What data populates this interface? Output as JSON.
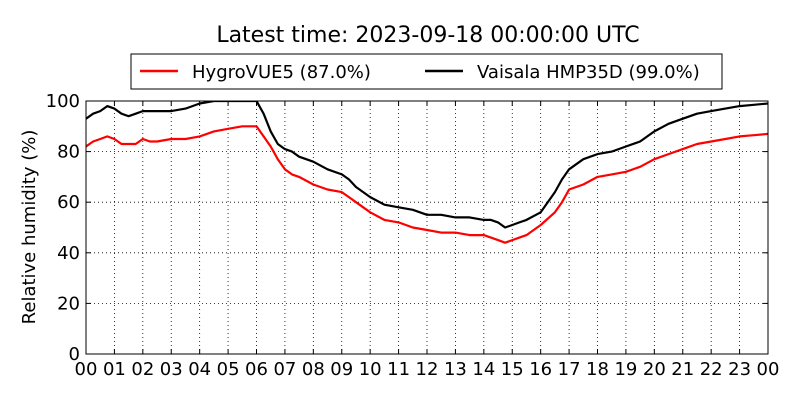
{
  "chart_data": {
    "type": "line",
    "title": "Latest time: 2023-09-18 00:00:00 UTC",
    "xlabel": "",
    "ylabel": "Relative humidity (%)",
    "xlim": [
      0,
      24
    ],
    "ylim": [
      0,
      100
    ],
    "x_ticks": [
      "00",
      "01",
      "02",
      "03",
      "04",
      "05",
      "06",
      "07",
      "08",
      "09",
      "10",
      "11",
      "12",
      "13",
      "14",
      "15",
      "16",
      "17",
      "18",
      "19",
      "20",
      "21",
      "22",
      "23",
      "00"
    ],
    "y_ticks": [
      0,
      20,
      40,
      60,
      80,
      100
    ],
    "grid": true,
    "legend_position": "top",
    "series": [
      {
        "name": "HygroVUE5 (87.0%)",
        "color": "#ff0000",
        "x": [
          0,
          0.25,
          0.5,
          0.75,
          1,
          1.25,
          1.5,
          1.75,
          2,
          2.25,
          2.5,
          3,
          3.5,
          4,
          4.5,
          5,
          5.5,
          6,
          6.25,
          6.5,
          6.75,
          7,
          7.25,
          7.5,
          8,
          8.5,
          9,
          9.25,
          9.5,
          10,
          10.5,
          11,
          11.5,
          12,
          12.5,
          13,
          13.5,
          14,
          14.25,
          14.5,
          14.75,
          15,
          15.25,
          15.5,
          16,
          16.5,
          16.75,
          17,
          17.5,
          18,
          18.5,
          19,
          19.5,
          20,
          20.5,
          21,
          21.5,
          22,
          22.5,
          23,
          23.5,
          24
        ],
        "values": [
          82,
          84,
          85,
          86,
          85,
          83,
          83,
          83,
          85,
          84,
          84,
          85,
          85,
          86,
          88,
          89,
          90,
          90,
          86,
          82,
          77,
          73,
          71,
          70,
          67,
          65,
          64,
          62,
          60,
          56,
          53,
          52,
          50,
          49,
          48,
          48,
          47,
          47,
          46,
          45,
          44,
          45,
          46,
          47,
          51,
          56,
          60,
          65,
          67,
          70,
          71,
          72,
          74,
          77,
          79,
          81,
          83,
          84,
          85,
          86,
          86.5,
          87
        ]
      },
      {
        "name": "Vaisala HMP35D (99.0%)",
        "color": "#000000",
        "x": [
          0,
          0.25,
          0.5,
          0.75,
          1,
          1.25,
          1.5,
          1.75,
          2,
          2.25,
          2.5,
          3,
          3.5,
          4,
          4.5,
          5,
          5.5,
          6,
          6.25,
          6.5,
          6.75,
          7,
          7.25,
          7.5,
          8,
          8.5,
          9,
          9.25,
          9.5,
          10,
          10.5,
          11,
          11.5,
          12,
          12.5,
          13,
          13.5,
          14,
          14.25,
          14.5,
          14.75,
          15,
          15.25,
          15.5,
          16,
          16.5,
          16.75,
          17,
          17.5,
          18,
          18.5,
          19,
          19.5,
          20,
          20.5,
          21,
          21.5,
          22,
          22.5,
          23,
          23.5,
          24
        ],
        "values": [
          93,
          95,
          96,
          98,
          97,
          95,
          94,
          95,
          96,
          96,
          96,
          96,
          97,
          99,
          100,
          100,
          100,
          100,
          95,
          88,
          83,
          81,
          80,
          78,
          76,
          73,
          71,
          69,
          66,
          62,
          59,
          58,
          57,
          55,
          55,
          54,
          54,
          53,
          53,
          52,
          50,
          51,
          52,
          53,
          56,
          64,
          69,
          73,
          77,
          79,
          80,
          82,
          84,
          88,
          91,
          93,
          95,
          96,
          97,
          98,
          98.5,
          99
        ]
      }
    ]
  }
}
